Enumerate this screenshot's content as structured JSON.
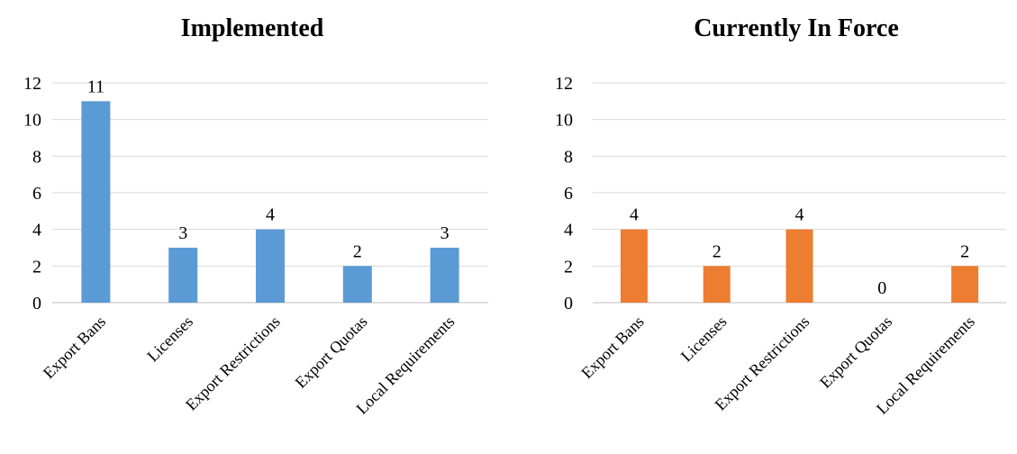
{
  "chart_data": [
    {
      "type": "bar",
      "title": "Implemented",
      "categories": [
        "Export Bans",
        "Licenses",
        "Export Restrictions",
        "Export Quotas",
        "Local Requirements"
      ],
      "values": [
        11,
        3,
        4,
        2,
        3
      ],
      "data_labels": [
        "11",
        "3",
        "4",
        "2",
        "3"
      ],
      "color": "#5b9bd5",
      "ylim": [
        0,
        12
      ],
      "yticks": [
        0,
        2,
        4,
        6,
        8,
        10,
        12
      ],
      "grid": true,
      "legend": "none",
      "xlabel": "",
      "ylabel": ""
    },
    {
      "type": "bar",
      "title": "Currently In Force",
      "categories": [
        "Export Bans",
        "Licenses",
        "Export Restrictions",
        "Export Quotas",
        "Local Requirements"
      ],
      "values": [
        4,
        2,
        4,
        0,
        2
      ],
      "data_labels": [
        "4",
        "2",
        "4",
        "0",
        "2"
      ],
      "color": "#ed7d31",
      "ylim": [
        0,
        12
      ],
      "yticks": [
        0,
        2,
        4,
        6,
        8,
        10,
        12
      ],
      "grid": true,
      "legend": "none",
      "xlabel": "",
      "ylabel": ""
    }
  ]
}
